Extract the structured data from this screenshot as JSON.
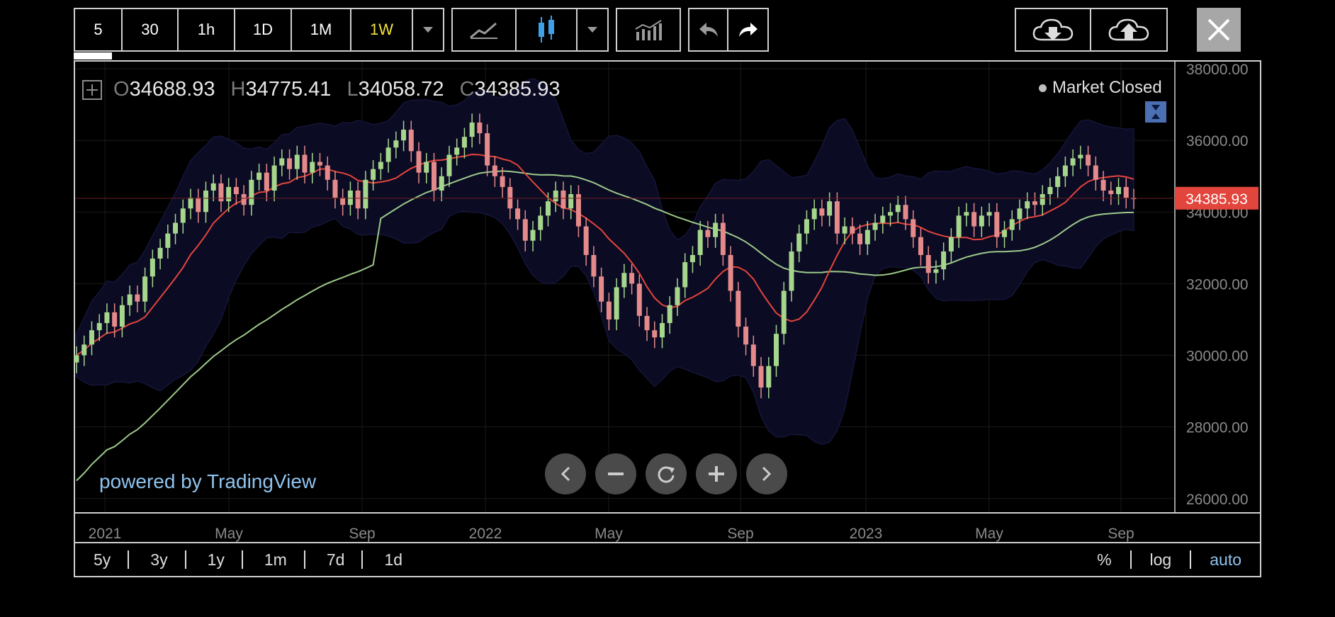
{
  "toolbar": {
    "timeframes": [
      "5",
      "30",
      "1h",
      "1D",
      "1M",
      "1W"
    ],
    "active_timeframe": "1W",
    "icons": [
      "chevron-down-icon",
      "line-chart-icon",
      "candlestick-icon",
      "chevron-down-icon",
      "indicators-icon",
      "undo-icon",
      "redo-icon",
      "cloud-download-icon",
      "cloud-upload-icon",
      "close-icon"
    ]
  },
  "ohlc": {
    "o_label": "O",
    "o": "34688.93",
    "h_label": "H",
    "h": "34775.41",
    "l_label": "L",
    "l": "34058.72",
    "c_label": "C",
    "c": "34385.93"
  },
  "status": "Market Closed",
  "branding": "powered by TradingView",
  "ranges": [
    "5y",
    "3y",
    "1y",
    "1m",
    "7d",
    "1d"
  ],
  "scale_options": [
    "%",
    "log",
    "auto"
  ],
  "colors": {
    "up": "#a6d68c",
    "down": "#e58a8a",
    "ema": "#e2453c",
    "sma": "#9dc98a",
    "band": "#0b0b24",
    "price_tag": "#e2453c",
    "link": "#8fc3ee",
    "active": "#f4e53c"
  },
  "chart_data": {
    "type": "candlestick",
    "y_ticks": [
      "38000.00",
      "36000.00",
      "34000.00",
      "32000.00",
      "30000.00",
      "28000.00",
      "26000.00"
    ],
    "x_ticks": [
      "2021",
      "May",
      "Sep",
      "2022",
      "May",
      "Sep",
      "2023",
      "May",
      "Sep"
    ],
    "last_price": "34385.93",
    "ylim": [
      25600,
      38200
    ],
    "candles_weekly_close": [
      30000,
      30300,
      30700,
      30900,
      31200,
      30800,
      31400,
      31700,
      31500,
      32200,
      32700,
      33000,
      33400,
      33700,
      34100,
      34400,
      34000,
      34600,
      34800,
      34300,
      34700,
      34500,
      34200,
      34900,
      35100,
      34600,
      35300,
      35500,
      35200,
      35600,
      35100,
      35400,
      35300,
      34900,
      34400,
      34200,
      34600,
      34100,
      34900,
      35200,
      35400,
      35800,
      36000,
      36300,
      35700,
      35100,
      35400,
      34600,
      35000,
      35600,
      35800,
      36100,
      36500,
      36200,
      35300,
      35000,
      34700,
      34100,
      33800,
      33200,
      33500,
      33900,
      34300,
      34600,
      34100,
      34500,
      33600,
      32800,
      32200,
      31500,
      31000,
      31900,
      32300,
      32000,
      31100,
      30700,
      30500,
      30900,
      31400,
      31900,
      32600,
      32800,
      33500,
      33300,
      33700,
      32800,
      31800,
      30800,
      30300,
      29700,
      29100,
      29700,
      30600,
      31800,
      32900,
      33400,
      33800,
      34100,
      33900,
      34300,
      33400,
      33600,
      33400,
      33100,
      33500,
      33700,
      33900,
      34000,
      34200,
      33800,
      33300,
      32800,
      32300,
      32400,
      32900,
      33300,
      33900,
      34000,
      33600,
      33900,
      34000,
      33300,
      33500,
      33800,
      34100,
      34300,
      34200,
      34500,
      34700,
      35000,
      35300,
      35500,
      35600,
      35300,
      34900,
      34600,
      34500,
      34700,
      34400,
      34385.93
    ]
  }
}
